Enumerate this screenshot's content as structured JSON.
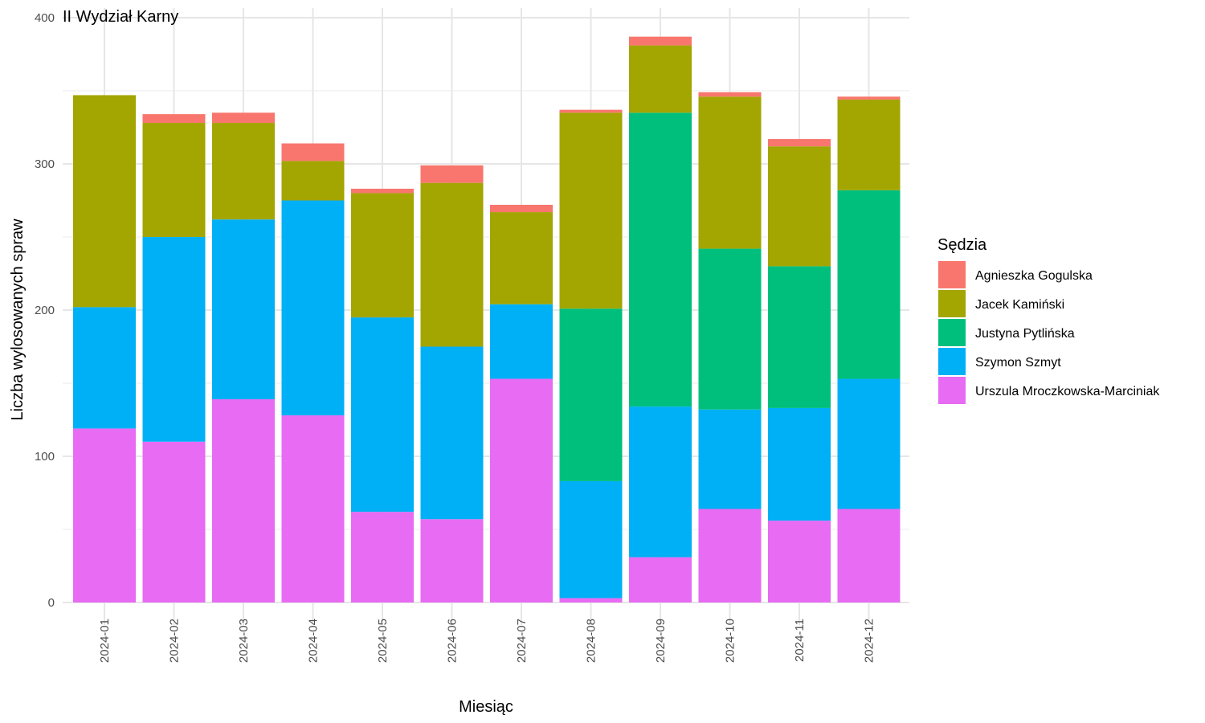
{
  "chart_data": {
    "type": "bar",
    "stacked": true,
    "title": "II Wydział Karny",
    "xlabel": "Miesiąc",
    "ylabel": "Liczba wylosowanych spraw",
    "ylim": [
      0,
      400
    ],
    "yticks": [
      0,
      100,
      200,
      300,
      400
    ],
    "grid": true,
    "legend_title": "Sędzia",
    "legend_position": "right",
    "categories": [
      "2024-01",
      "2024-02",
      "2024-03",
      "2024-04",
      "2024-05",
      "2024-06",
      "2024-07",
      "2024-08",
      "2024-09",
      "2024-10",
      "2024-11",
      "2024-12"
    ],
    "series": [
      {
        "name": "Agnieszka Gogulska",
        "color": "#F8766D",
        "values": [
          0,
          6,
          7,
          12,
          3,
          12,
          5,
          2,
          6,
          3,
          5,
          2
        ]
      },
      {
        "name": "Jacek Kamiński",
        "color": "#A3A500",
        "values": [
          145,
          78,
          66,
          27,
          85,
          112,
          63,
          134,
          46,
          104,
          82,
          62
        ]
      },
      {
        "name": "Justyna Pytlińska",
        "color": "#00BF7D",
        "values": [
          0,
          0,
          0,
          0,
          0,
          0,
          0,
          118,
          201,
          110,
          97,
          129
        ]
      },
      {
        "name": "Szymon Szmyt",
        "color": "#00B0F6",
        "values": [
          83,
          140,
          123,
          147,
          133,
          118,
          51,
          80,
          103,
          68,
          77,
          89
        ]
      },
      {
        "name": "Urszula Mroczkowska-Marciniak",
        "color": "#E76BF3",
        "values": [
          119,
          110,
          139,
          128,
          62,
          57,
          153,
          3,
          31,
          64,
          56,
          64
        ]
      }
    ]
  }
}
